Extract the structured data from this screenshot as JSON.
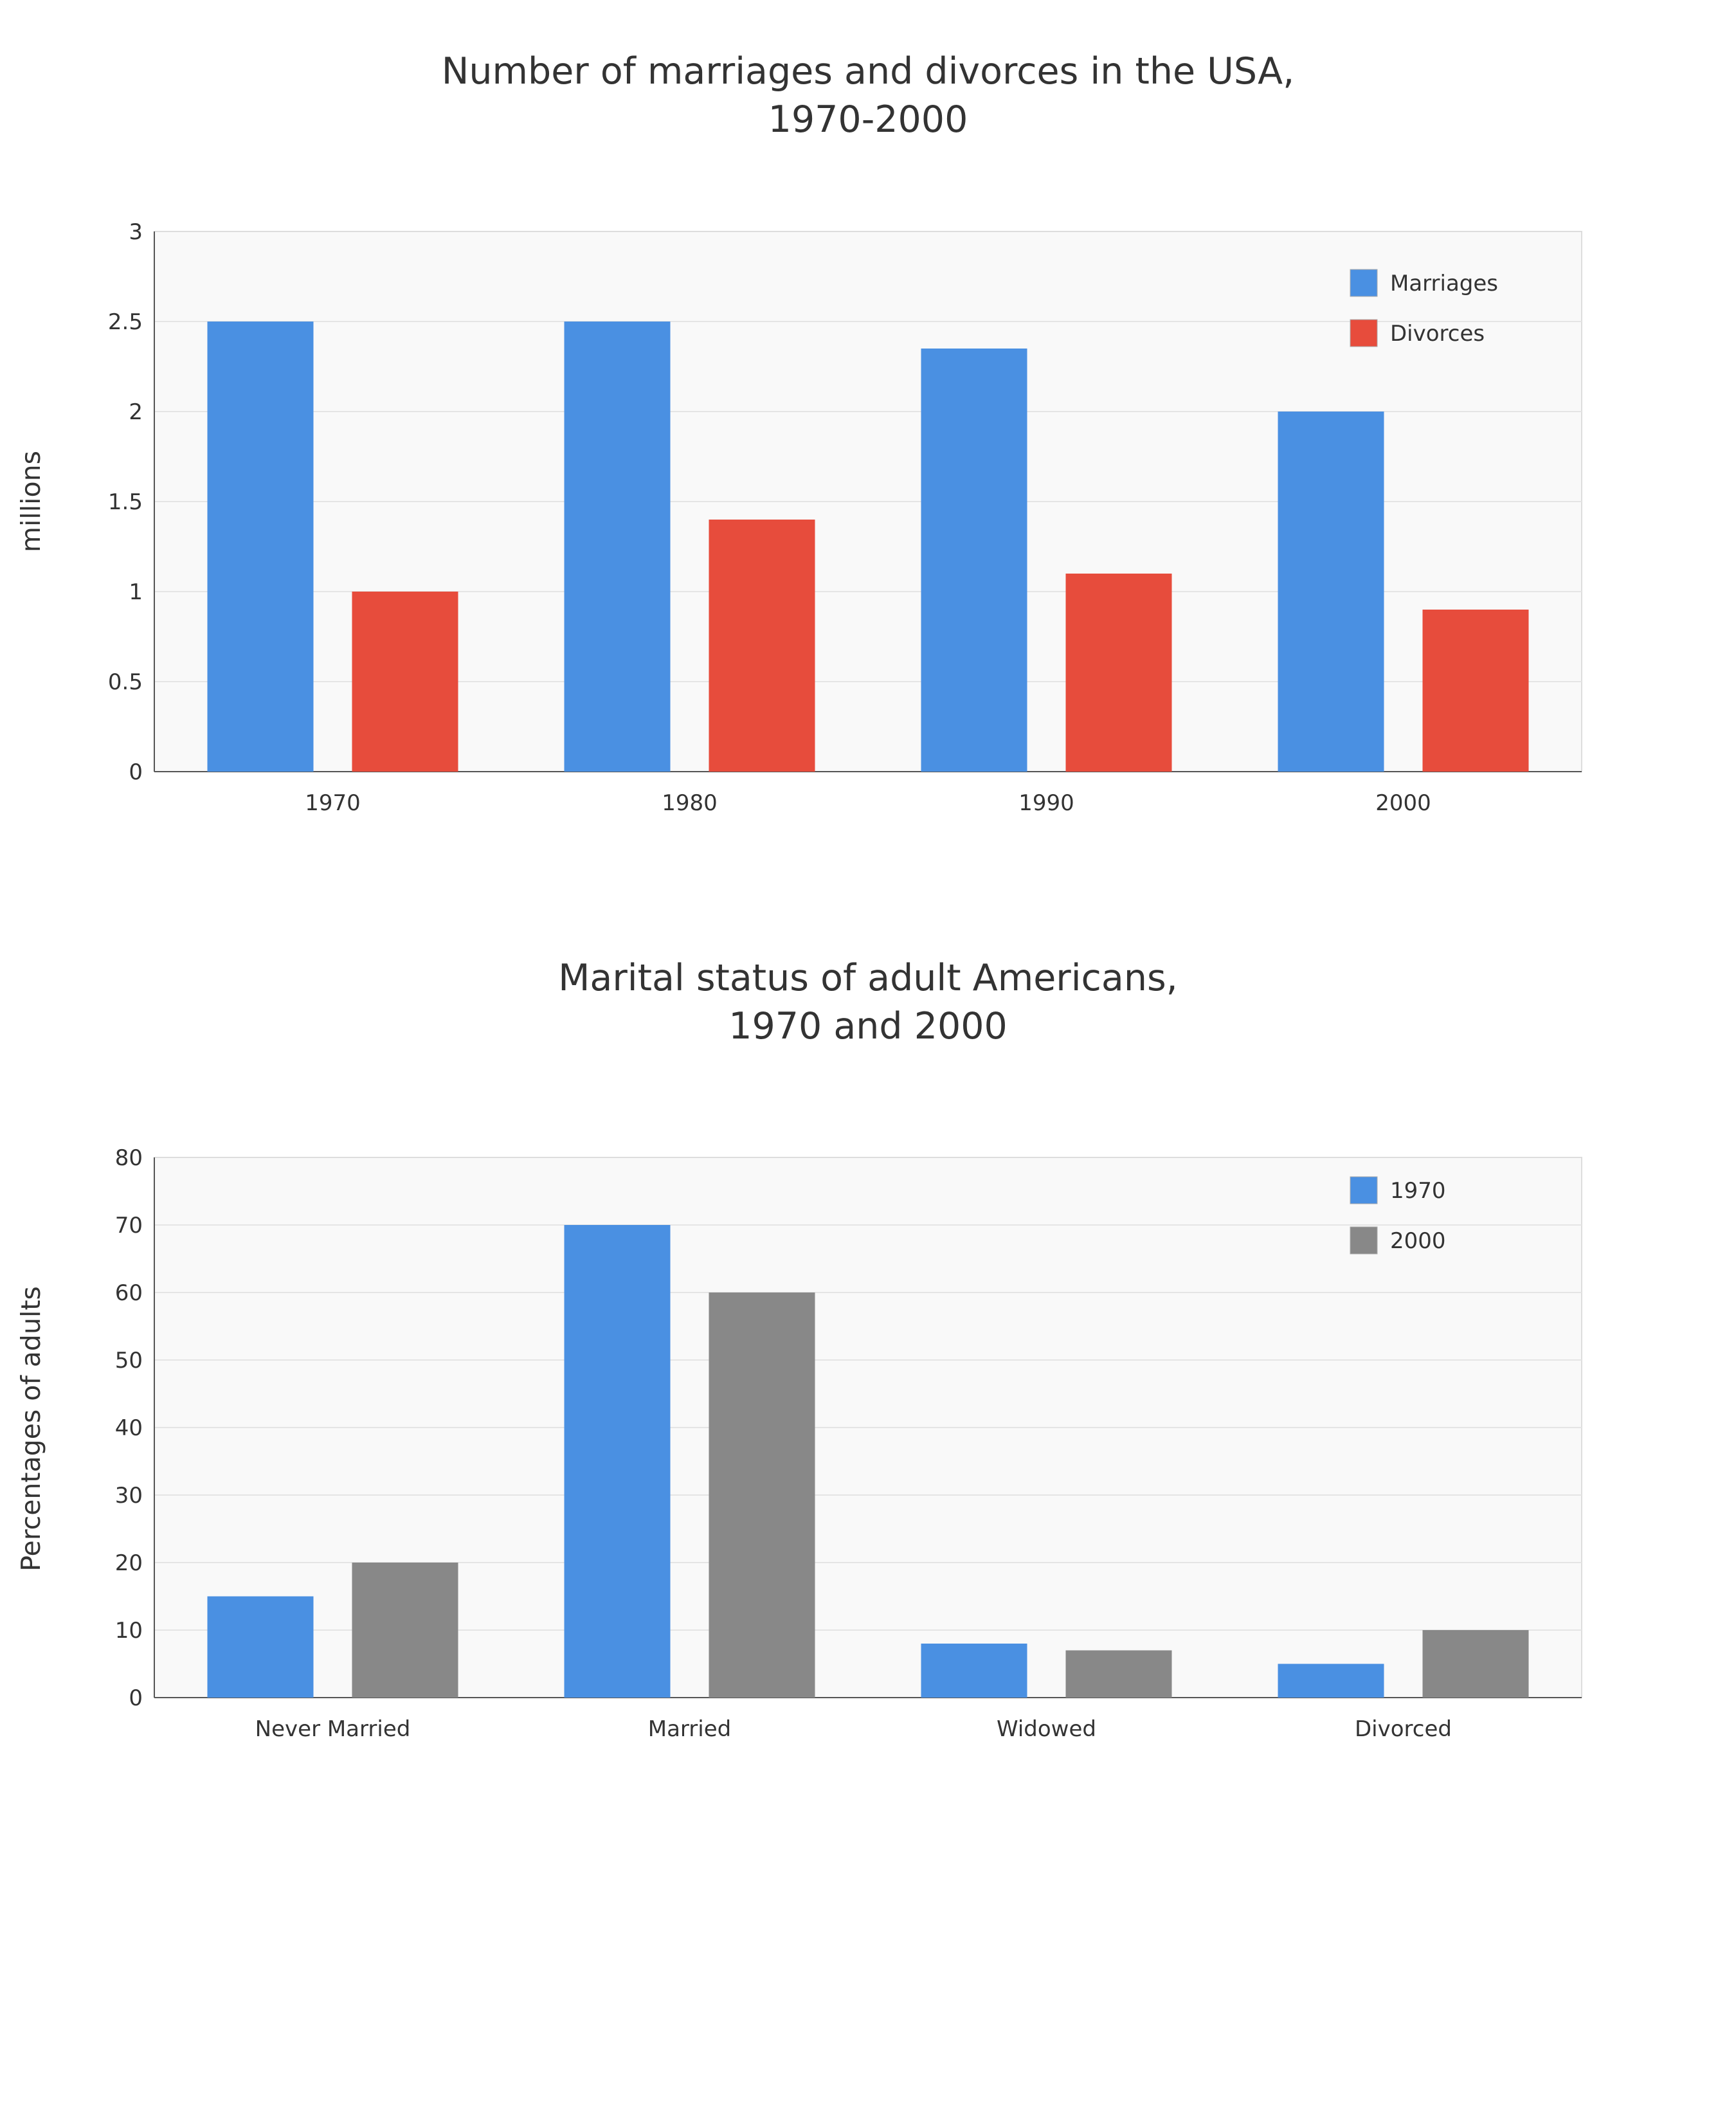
{
  "chart_data": [
    {
      "type": "bar",
      "title": [
        "Number of marriages and divorces in the USA,",
        "1970-2000"
      ],
      "xlabel": "",
      "ylabel": "millions",
      "ylim": [
        0,
        3
      ],
      "yticks": [
        "0",
        "0.5",
        "1",
        "1.5",
        "2",
        "2.5",
        "3"
      ],
      "categories": [
        "1970",
        "1980",
        "1990",
        "2000"
      ],
      "series": [
        {
          "name": "Marriages",
          "color": "#4a90e2",
          "values": [
            2.5,
            2.5,
            2.35,
            2.0
          ]
        },
        {
          "name": "Divorces",
          "color": "#e74c3c",
          "values": [
            1.0,
            1.4,
            1.1,
            0.9
          ]
        }
      ],
      "grid": true,
      "legend": "top-right"
    },
    {
      "type": "bar",
      "title": [
        "Marital status of adult Americans,",
        "1970 and 2000"
      ],
      "xlabel": "",
      "ylabel": "Percentages of adults",
      "ylim": [
        0,
        80
      ],
      "yticks": [
        "0",
        "10",
        "20",
        "30",
        "40",
        "50",
        "60",
        "70",
        "80"
      ],
      "categories": [
        "Never Married",
        "Married",
        "Widowed",
        "Divorced"
      ],
      "series": [
        {
          "name": "1970",
          "color": "#4a90e2",
          "values": [
            15,
            70,
            8,
            5
          ]
        },
        {
          "name": "2000",
          "color": "#888888",
          "values": [
            20,
            60,
            7,
            10
          ]
        }
      ],
      "grid": true,
      "legend": "top-right"
    }
  ]
}
